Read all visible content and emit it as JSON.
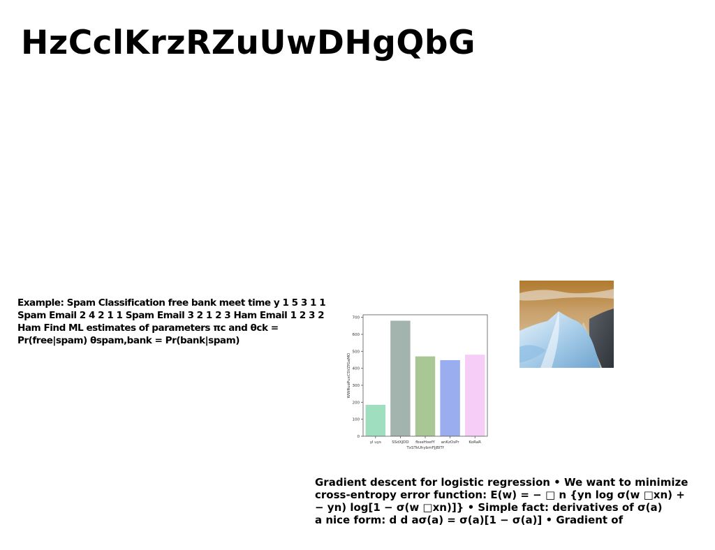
{
  "slide": {
    "title": "HzCclKrzRZuUwDHgQbG",
    "example_text": "Example: Spam Classification free bank meet time y 1 5 3 1 1 Spam Email 2 4 2 1 1 Spam Email 3 2 1 2 3 Ham Email 1 2 3 2 Ham Find ML estimates of parameters πc and θck = Pr(free|spam) θspam,bank = Pr(bank|spam)",
    "gradient_lines": [
      "Gradient descent for logistic regression • We want to minimize",
      "cross-entropy error function: E(w) = − □ n {yn log σ(w □xn) +",
      "− yn) log[1 − σ(w □xn)]} • Simple fact: derivatives of σ(a)",
      "a nice form: d d aσ(a) = σ(a)[1 − σ(a)] • Gradient of"
    ]
  },
  "chart_data": {
    "type": "bar",
    "categories": [
      "yl uys",
      "SSdXJDD",
      "fbseHoefY",
      "anKzOsPr",
      "KoRaR"
    ],
    "values": [
      185,
      680,
      470,
      448,
      480
    ],
    "colors": [
      "#9fdfc0",
      "#a3b3ae",
      "#a8c795",
      "#9aaeef",
      "#f6cdf6"
    ],
    "xlabel": "TxSTkUhybmFJjBITf",
    "ylabel": "WWRuoPuxCSVZfGaMO",
    "yticks": [
      0,
      100,
      200,
      300,
      400,
      500,
      600,
      700
    ],
    "ylim": [
      0,
      715
    ],
    "grid": false
  },
  "photo": {
    "icon": "mountain-coast-photo"
  }
}
